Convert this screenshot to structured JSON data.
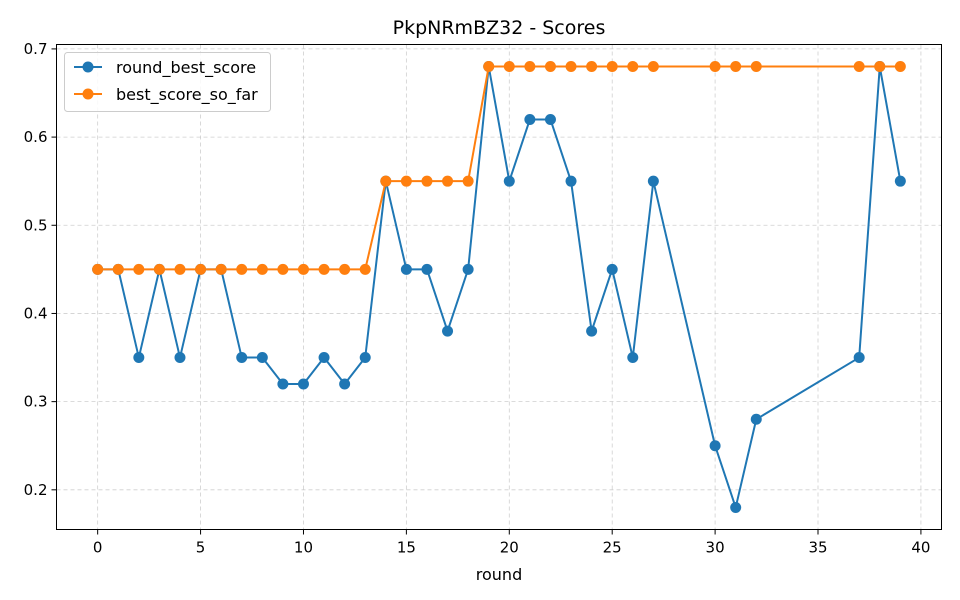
{
  "chart_data": {
    "type": "line",
    "title": "PkpNRmBZ32 - Scores",
    "xlabel": "round",
    "ylabel": "",
    "xlim": [
      -2,
      41
    ],
    "ylim": [
      0.155,
      0.705
    ],
    "xticks": [
      0,
      5,
      10,
      15,
      20,
      25,
      30,
      35,
      40
    ],
    "yticks": [
      0.2,
      0.3,
      0.4,
      0.5,
      0.6,
      0.7
    ],
    "ytick_labels": [
      "0.2",
      "0.3",
      "0.4",
      "0.5",
      "0.6",
      "0.7"
    ],
    "grid": true,
    "legend_position": "top-left",
    "series": [
      {
        "name": "round_best_score",
        "color": "#1f77b4",
        "x": [
          0,
          1,
          2,
          3,
          4,
          5,
          6,
          7,
          8,
          9,
          10,
          11,
          12,
          13,
          14,
          15,
          16,
          17,
          18,
          19,
          20,
          21,
          22,
          23,
          24,
          25,
          26,
          27,
          30,
          31,
          32,
          37,
          38,
          39
        ],
        "y": [
          0.45,
          0.45,
          0.35,
          0.45,
          0.35,
          0.45,
          0.45,
          0.35,
          0.35,
          0.32,
          0.32,
          0.35,
          0.32,
          0.35,
          0.55,
          0.45,
          0.45,
          0.38,
          0.45,
          0.68,
          0.55,
          0.62,
          0.62,
          0.55,
          0.38,
          0.45,
          0.35,
          0.55,
          0.25,
          0.18,
          0.28,
          0.35,
          0.68,
          0.55
        ]
      },
      {
        "name": "best_score_so_far",
        "color": "#ff7f0e",
        "x": [
          0,
          1,
          2,
          3,
          4,
          5,
          6,
          7,
          8,
          9,
          10,
          11,
          12,
          13,
          14,
          15,
          16,
          17,
          18,
          19,
          20,
          21,
          22,
          23,
          24,
          25,
          26,
          27,
          30,
          31,
          32,
          37,
          38,
          39
        ],
        "y": [
          0.45,
          0.45,
          0.45,
          0.45,
          0.45,
          0.45,
          0.45,
          0.45,
          0.45,
          0.45,
          0.45,
          0.45,
          0.45,
          0.45,
          0.55,
          0.55,
          0.55,
          0.55,
          0.55,
          0.68,
          0.68,
          0.68,
          0.68,
          0.68,
          0.68,
          0.68,
          0.68,
          0.68,
          0.68,
          0.68,
          0.68,
          0.68,
          0.68,
          0.68
        ]
      }
    ]
  }
}
